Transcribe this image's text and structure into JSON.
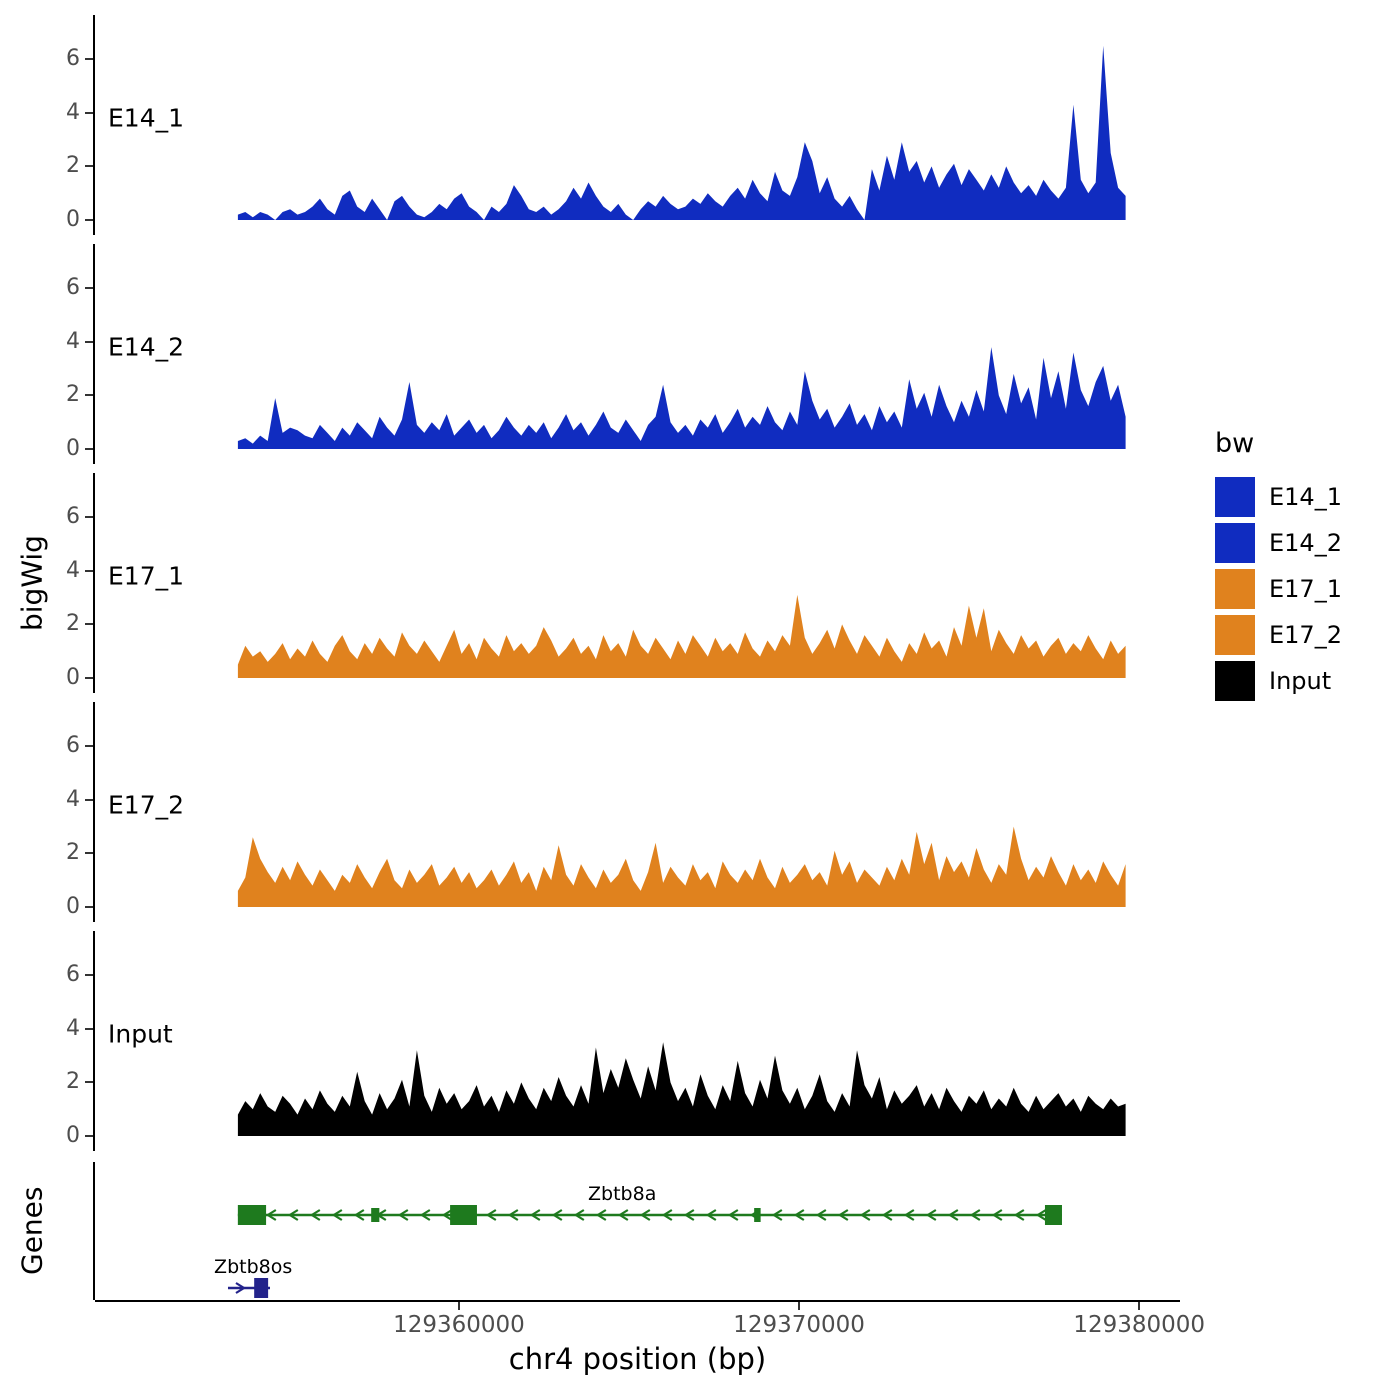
{
  "figure": {
    "y_axis_title": "bigWig",
    "genes_axis_title": "Genes",
    "x_axis_title": "chr4 position (bp)"
  },
  "legend": {
    "title": "bw",
    "entries": [
      {
        "label": "E14_1",
        "color": "#102cc0"
      },
      {
        "label": "E14_2",
        "color": "#102cc0"
      },
      {
        "label": "E17_1",
        "color": "#e0821e"
      },
      {
        "label": "E17_2",
        "color": "#e0821e"
      },
      {
        "label": "Input",
        "color": "#000000"
      }
    ]
  },
  "chart_data": {
    "type": "area",
    "title": "",
    "xlabel": "chr4 position (bp)",
    "ylabel": "bigWig",
    "x_domain": [
      129349300,
      129381200
    ],
    "x_ticks": [
      {
        "value": 129360000,
        "label": "129360000"
      },
      {
        "value": 129370000,
        "label": "129370000"
      },
      {
        "value": 129380000,
        "label": "129380000"
      }
    ],
    "y_ticks": [
      0,
      2,
      4,
      6
    ],
    "y_domain": [
      0,
      6.9
    ],
    "signal_range": [
      129353500,
      129379600
    ],
    "tracks": [
      {
        "name": "E14_1",
        "color": "#102cc0",
        "values": [
          0.2,
          0.3,
          0.1,
          0.3,
          0.2,
          0,
          0.3,
          0.4,
          0.2,
          0.3,
          0.5,
          0.8,
          0.4,
          0.2,
          0.9,
          1.1,
          0.5,
          0.3,
          0.8,
          0.4,
          0,
          0.7,
          0.9,
          0.5,
          0.2,
          0.1,
          0.3,
          0.6,
          0.4,
          0.8,
          1.0,
          0.5,
          0.3,
          0,
          0.5,
          0.3,
          0.6,
          1.3,
          0.9,
          0.4,
          0.3,
          0.5,
          0.2,
          0.4,
          0.7,
          1.2,
          0.8,
          1.4,
          0.9,
          0.5,
          0.3,
          0.6,
          0.2,
          0,
          0.4,
          0.7,
          0.5,
          0.9,
          0.6,
          0.4,
          0.5,
          0.8,
          0.6,
          1.0,
          0.7,
          0.5,
          0.9,
          1.2,
          0.8,
          1.5,
          1.0,
          0.7,
          1.8,
          1.1,
          0.9,
          1.6,
          2.9,
          2.2,
          1.0,
          1.6,
          0.8,
          0.5,
          0.9,
          0.4,
          0,
          1.9,
          1.1,
          2.4,
          1.5,
          2.9,
          1.8,
          2.2,
          1.4,
          2.0,
          1.2,
          1.7,
          2.1,
          1.3,
          1.9,
          1.5,
          1.1,
          1.7,
          1.2,
          2.0,
          1.4,
          1.0,
          1.3,
          0.9,
          1.5,
          1.1,
          0.8,
          1.2,
          4.3,
          1.5,
          1.0,
          1.4,
          6.5,
          2.5,
          1.2,
          0.9
        ]
      },
      {
        "name": "E14_2",
        "color": "#102cc0",
        "values": [
          0.3,
          0.4,
          0.2,
          0.5,
          0.3,
          1.9,
          0.6,
          0.8,
          0.7,
          0.5,
          0.4,
          0.9,
          0.6,
          0.3,
          0.8,
          0.5,
          1.0,
          0.7,
          0.4,
          1.2,
          0.8,
          0.5,
          1.1,
          2.5,
          0.9,
          0.6,
          1.0,
          0.7,
          1.3,
          0.5,
          0.8,
          1.1,
          0.6,
          0.9,
          0.4,
          0.7,
          1.2,
          0.8,
          0.5,
          0.9,
          0.6,
          1.0,
          0.4,
          0.8,
          1.3,
          0.7,
          1.0,
          0.5,
          0.9,
          1.4,
          0.8,
          0.6,
          1.1,
          0.7,
          0.3,
          0.9,
          1.2,
          2.4,
          1.0,
          0.6,
          0.9,
          0.5,
          1.1,
          0.8,
          1.3,
          0.6,
          1.0,
          1.5,
          0.8,
          1.2,
          0.9,
          1.6,
          1.0,
          0.7,
          1.4,
          0.9,
          2.9,
          1.8,
          1.1,
          1.5,
          0.8,
          1.2,
          1.7,
          0.9,
          1.3,
          0.7,
          1.6,
          1.0,
          1.4,
          0.8,
          2.6,
          1.5,
          2.1,
          1.2,
          2.4,
          1.6,
          1.0,
          1.8,
          1.2,
          2.2,
          1.4,
          3.8,
          2.0,
          1.3,
          2.8,
          1.7,
          2.3,
          1.1,
          3.4,
          1.9,
          2.9,
          1.5,
          3.6,
          2.2,
          1.6,
          2.5,
          3.1,
          1.8,
          2.4,
          1.2
        ]
      },
      {
        "name": "E17_1",
        "color": "#e0821e",
        "values": [
          0.5,
          1.2,
          0.8,
          1.0,
          0.6,
          0.9,
          1.3,
          0.7,
          1.1,
          0.8,
          1.4,
          0.9,
          0.6,
          1.2,
          1.6,
          1.0,
          0.7,
          1.3,
          0.9,
          1.5,
          1.1,
          0.8,
          1.7,
          1.2,
          0.9,
          1.4,
          1.0,
          0.6,
          1.2,
          1.8,
          0.9,
          1.3,
          0.7,
          1.5,
          1.1,
          0.8,
          1.6,
          1.0,
          1.3,
          0.9,
          1.2,
          1.9,
          1.4,
          0.8,
          1.1,
          1.5,
          0.9,
          1.2,
          0.7,
          1.6,
          1.0,
          1.3,
          0.8,
          1.8,
          1.2,
          0.9,
          1.5,
          1.1,
          0.7,
          1.4,
          0.9,
          1.6,
          1.2,
          0.8,
          1.5,
          1.0,
          1.3,
          0.9,
          1.7,
          1.1,
          0.8,
          1.4,
          1.0,
          1.6,
          1.2,
          3.1,
          1.5,
          0.9,
          1.3,
          1.8,
          1.1,
          2.0,
          1.4,
          0.9,
          1.6,
          1.2,
          0.8,
          1.5,
          1.0,
          0.6,
          1.3,
          0.9,
          1.7,
          1.1,
          1.4,
          0.8,
          1.9,
          1.2,
          2.7,
          1.5,
          2.6,
          1.0,
          1.8,
          1.3,
          0.9,
          1.6,
          1.1,
          1.4,
          0.8,
          1.2,
          1.5,
          0.9,
          1.3,
          1.0,
          1.6,
          1.1,
          0.7,
          1.4,
          0.9,
          1.2
        ]
      },
      {
        "name": "E17_2",
        "color": "#e0821e",
        "values": [
          0.6,
          1.1,
          2.6,
          1.8,
          1.3,
          0.9,
          1.5,
          1.0,
          1.7,
          1.2,
          0.8,
          1.4,
          1.0,
          0.6,
          1.2,
          0.9,
          1.6,
          1.1,
          0.7,
          1.3,
          1.8,
          1.0,
          0.7,
          1.4,
          0.9,
          1.2,
          1.6,
          0.8,
          1.1,
          1.5,
          0.9,
          1.3,
          0.7,
          1.0,
          1.4,
          0.8,
          1.2,
          1.7,
          0.9,
          1.3,
          0.6,
          1.5,
          1.0,
          2.3,
          1.2,
          0.8,
          1.6,
          1.1,
          0.7,
          1.4,
          0.9,
          1.2,
          1.8,
          1.0,
          0.6,
          1.3,
          2.4,
          0.9,
          1.5,
          1.1,
          0.8,
          1.6,
          1.0,
          1.3,
          0.7,
          1.7,
          1.2,
          0.9,
          1.4,
          1.0,
          1.8,
          1.1,
          0.7,
          1.5,
          0.9,
          1.2,
          1.6,
          1.0,
          1.3,
          0.8,
          2.1,
          1.2,
          1.7,
          0.9,
          1.4,
          1.1,
          0.8,
          1.5,
          1.0,
          1.8,
          1.2,
          2.8,
          1.6,
          2.4,
          1.0,
          1.9,
          1.3,
          1.7,
          1.1,
          2.2,
          1.4,
          0.9,
          1.6,
          1.2,
          3.0,
          1.8,
          1.0,
          1.5,
          1.1,
          1.9,
          1.3,
          0.8,
          1.6,
          1.0,
          1.4,
          0.9,
          1.7,
          1.2,
          0.8,
          1.6
        ]
      },
      {
        "name": "Input",
        "color": "#000000",
        "values": [
          0.8,
          1.3,
          1.0,
          1.6,
          1.1,
          0.9,
          1.5,
          1.2,
          0.8,
          1.4,
          1.0,
          1.7,
          1.2,
          0.9,
          1.5,
          1.1,
          2.4,
          1.3,
          0.8,
          1.6,
          1.0,
          1.4,
          2.1,
          1.1,
          3.2,
          1.5,
          0.9,
          1.8,
          1.2,
          1.6,
          1.0,
          1.3,
          1.9,
          1.1,
          1.5,
          0.9,
          1.7,
          1.2,
          2.0,
          1.4,
          1.0,
          1.8,
          1.3,
          2.2,
          1.5,
          1.1,
          1.9,
          1.2,
          3.3,
          1.6,
          2.5,
          1.8,
          2.9,
          2.1,
          1.4,
          2.6,
          1.7,
          3.5,
          2.0,
          1.3,
          1.8,
          1.1,
          2.3,
          1.5,
          1.0,
          1.9,
          1.3,
          2.8,
          1.6,
          1.1,
          2.1,
          1.4,
          3.0,
          1.7,
          1.2,
          1.8,
          1.0,
          1.5,
          2.3,
          1.3,
          0.9,
          1.6,
          1.1,
          3.2,
          1.9,
          1.4,
          2.2,
          1.0,
          1.7,
          1.2,
          1.5,
          1.9,
          1.1,
          1.6,
          1.0,
          1.8,
          1.3,
          0.9,
          1.5,
          1.2,
          1.7,
          1.0,
          1.4,
          1.1,
          1.8,
          1.2,
          0.9,
          1.5,
          1.0,
          1.3,
          1.6,
          1.1,
          1.4,
          0.9,
          1.5,
          1.2,
          1.0,
          1.4,
          1.1,
          1.2
        ]
      }
    ],
    "genes": [
      {
        "name": "Zbtb8a",
        "color": "#1e7a1e",
        "strand": "-",
        "row": 0,
        "start": 129353500,
        "end": 129377730,
        "label_x": 129364800,
        "exons": [
          [
            129353500,
            129354330
          ],
          [
            129357420,
            129357660
          ],
          [
            129359740,
            129360530
          ],
          [
            129368680,
            129368870
          ],
          [
            129377230,
            129377730
          ]
        ]
      },
      {
        "name": "Zbtb8os",
        "color": "#23238b",
        "strand": "+",
        "row": 1,
        "start": 129353210,
        "end": 129354445,
        "label_x": 129353950,
        "exons": [
          [
            129353980,
            129354390
          ]
        ]
      }
    ]
  }
}
